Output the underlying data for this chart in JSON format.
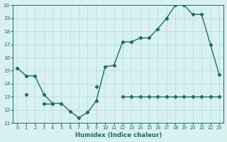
{
  "xlabel": "Humidex (Indice chaleur)",
  "line1_y": [
    15.2,
    14.6,
    14.6,
    13.2,
    12.5,
    12.5,
    11.9,
    11.4,
    11.8,
    12.7,
    15.3,
    15.4,
    17.2,
    17.2,
    17.5,
    17.5,
    18.2,
    19.0,
    20.0,
    20.0,
    19.3,
    19.3,
    17.0,
    14.7
  ],
  "line2_y": [
    null,
    13.2,
    null,
    12.5,
    12.5,
    null,
    null,
    null,
    null,
    13.8,
    null,
    null,
    13.0,
    13.0,
    13.0,
    13.0,
    13.0,
    13.0,
    13.0,
    13.0,
    13.0,
    13.0,
    13.0,
    13.0
  ],
  "line_color": "#1a6b6b",
  "bg_color": "#d9f0f0",
  "grid_color": "#b0d8d8",
  "ylim": [
    11,
    20
  ],
  "xlim": [
    -0.5,
    23.5
  ],
  "yticks": [
    11,
    12,
    13,
    14,
    15,
    16,
    17,
    18,
    19,
    20
  ],
  "xticks": [
    0,
    1,
    2,
    3,
    4,
    5,
    6,
    7,
    8,
    9,
    10,
    11,
    12,
    13,
    14,
    15,
    16,
    17,
    18,
    19,
    20,
    21,
    22,
    23
  ],
  "marker": "D",
  "markersize": 2.2,
  "linewidth": 1.0
}
